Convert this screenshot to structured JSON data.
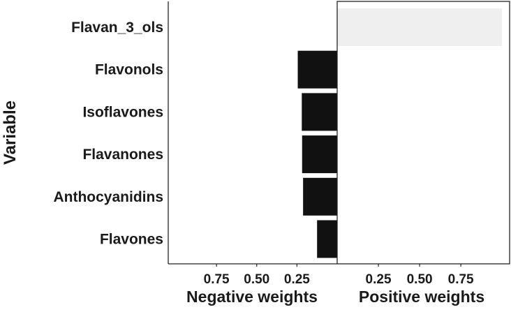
{
  "chart_data": {
    "type": "bar",
    "orientation": "horizontal",
    "ylabel": "Variable",
    "categories": [
      "Flavan_3_ols",
      "Flavonols",
      "Isoflavones",
      "Flavanones",
      "Anthocyanidins",
      "Flavones"
    ],
    "negative_panel": {
      "xlabel": "Negative weights",
      "tick_labels": [
        "0.75",
        "0.50",
        "0.25"
      ],
      "ticks": [
        0.75,
        0.5,
        0.25
      ],
      "xlim": [
        0,
        1.05
      ],
      "reversed": true,
      "values": [
        0,
        0.245,
        0.22,
        0.218,
        0.212,
        0.125
      ],
      "color": "#111111"
    },
    "positive_panel": {
      "xlabel": "Positive weights",
      "tick_labels": [
        "0.25",
        "0.50",
        "0.75"
      ],
      "ticks": [
        0.25,
        0.5,
        0.75
      ],
      "xlim": [
        0,
        1.05
      ],
      "values": [
        1.0,
        0,
        0,
        0,
        0,
        0
      ],
      "color": "#efefef"
    },
    "grid": false
  }
}
